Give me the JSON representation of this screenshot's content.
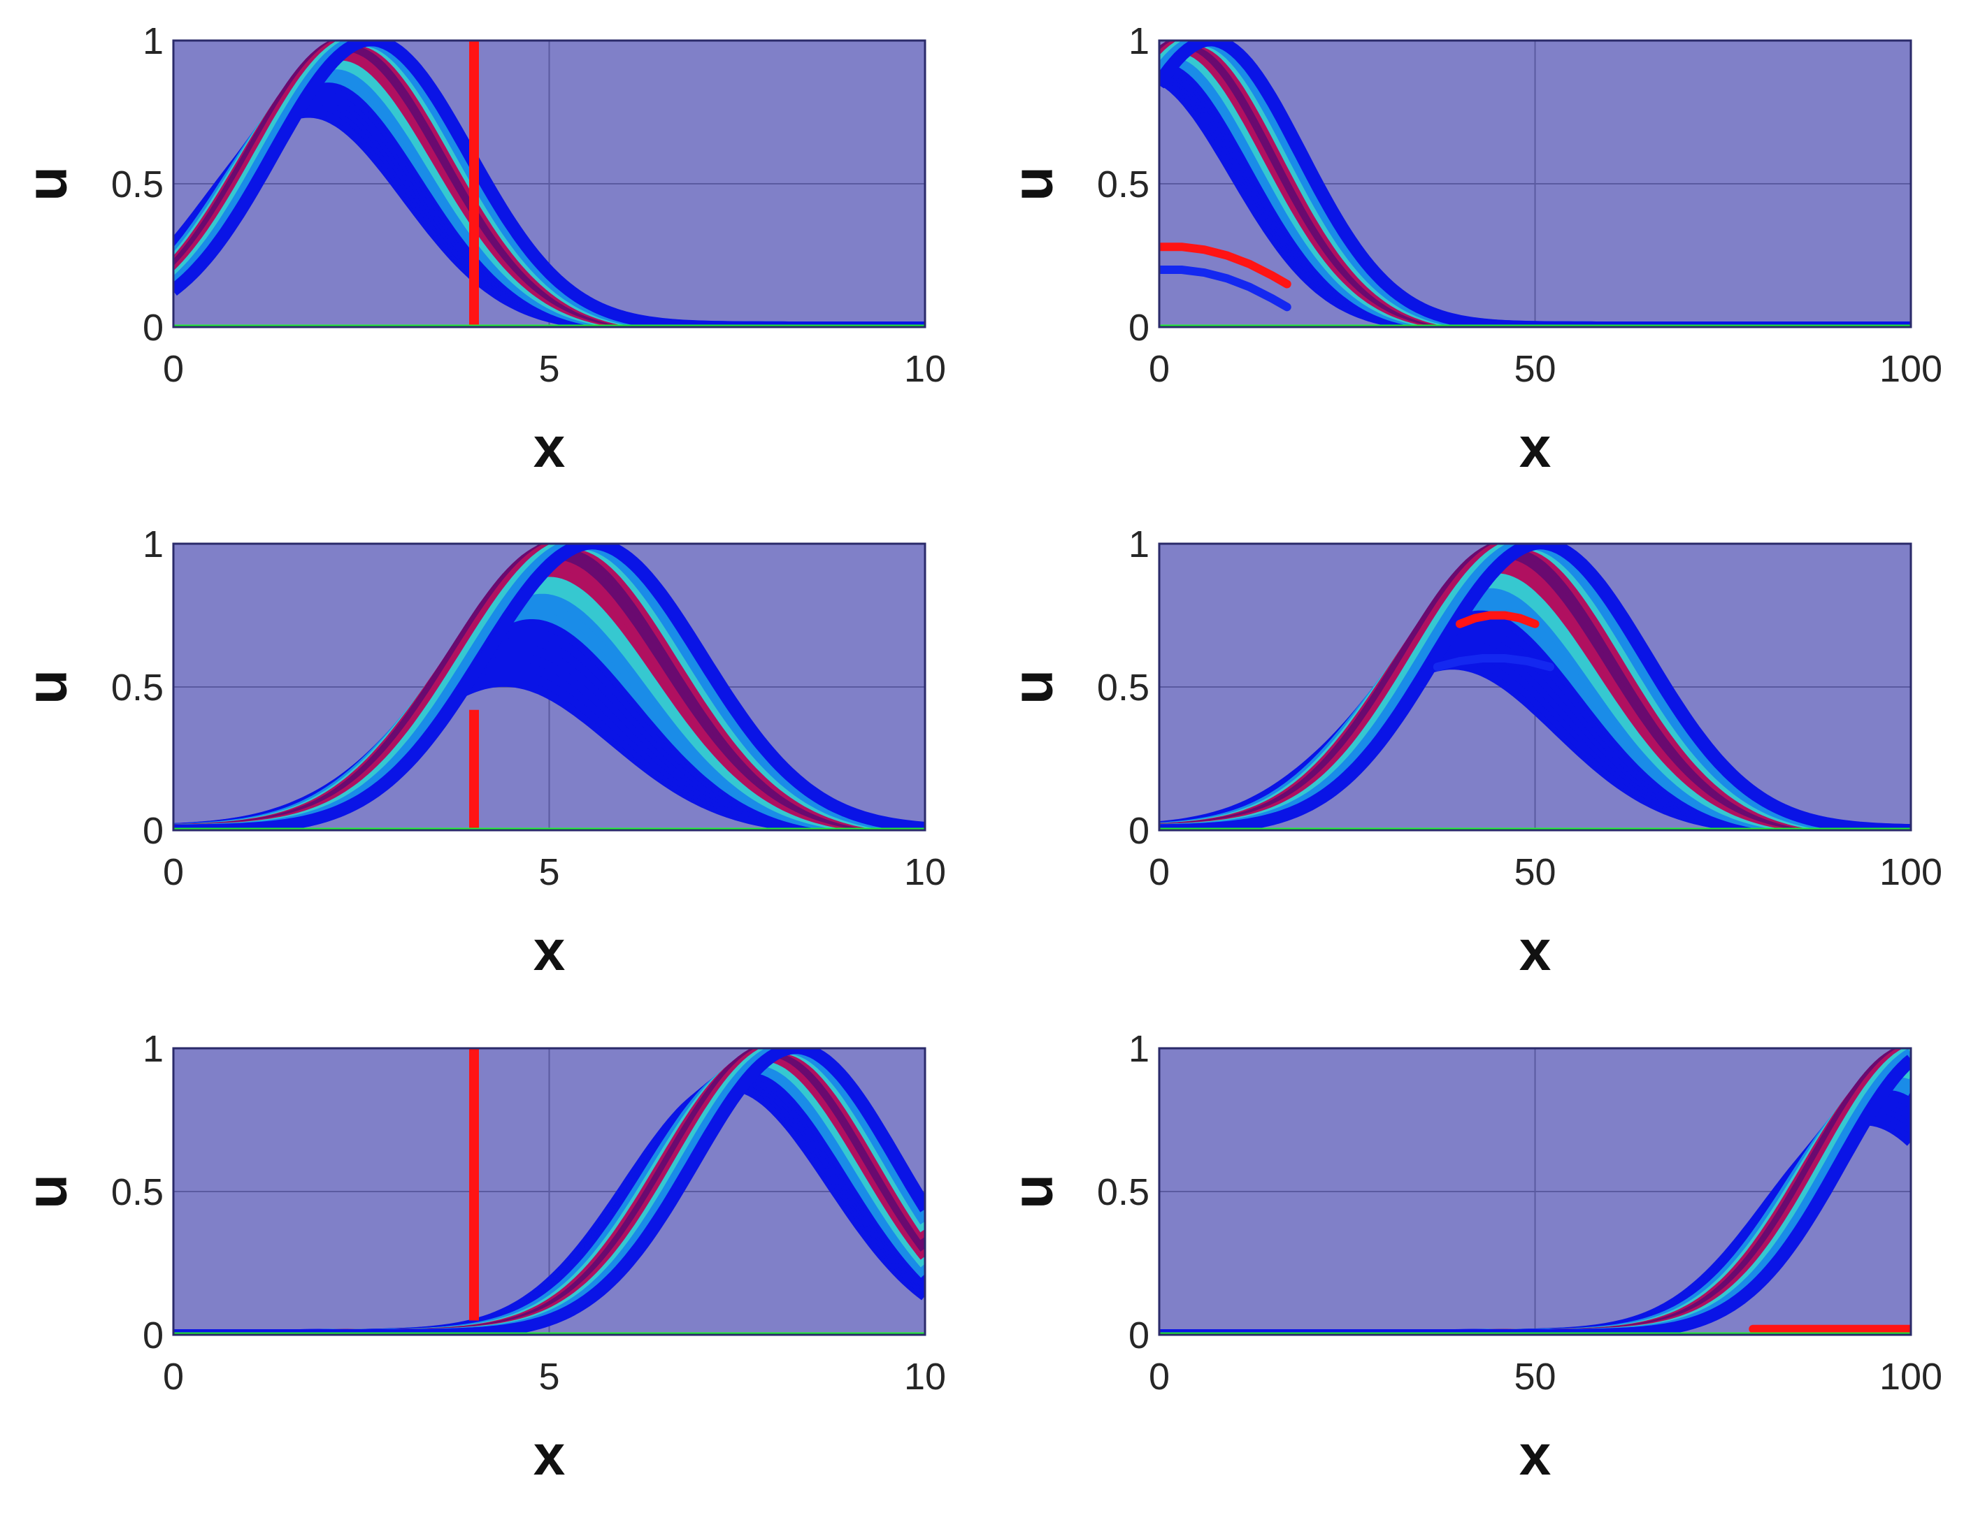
{
  "colors": {
    "background": "#8080c8",
    "frame": "#2a2a6a",
    "grid": "#5a5aa0",
    "band_outer": "#0a14e6",
    "band_mid": "#1a8ce8",
    "band_inner": "#36c8d0",
    "band_core": "#b01060",
    "band_center": "#6a0a70",
    "marker": "#ff1414",
    "secondary": "#1428f0",
    "boundary": "#22ee33"
  },
  "chart_data": [
    {
      "type": "line",
      "panel": "top-left",
      "xlabel": "x",
      "ylabel": "u",
      "xlim": [
        0,
        10
      ],
      "ylim": [
        0,
        1
      ],
      "xticks": [
        "0",
        "5",
        "10"
      ],
      "yticks": [
        "0",
        "0.5",
        "1"
      ],
      "grid": true,
      "band": {
        "peak_x": 2.2,
        "sigma": 1.3,
        "upper_offset": 0.45,
        "lower_offset": -0.4,
        "lower_peak": 0.75
      },
      "vertical_marker": {
        "x": 4.0,
        "y0": 0,
        "y1": 1
      },
      "arc_markers": []
    },
    {
      "type": "line",
      "panel": "top-right",
      "xlabel": "x",
      "ylabel": "u",
      "xlim": [
        0,
        100
      ],
      "ylim": [
        0,
        1
      ],
      "xticks": [
        "0",
        "50",
        "100"
      ],
      "yticks": [
        "0",
        "0.5",
        "1"
      ],
      "grid": true,
      "band": {
        "peak_x": 2,
        "sigma": 12,
        "upper_offset": 5,
        "lower_offset": -4,
        "lower_peak": 0.88
      },
      "vertical_marker": null,
      "arc_markers": [
        {
          "series": "red",
          "x": [
            0,
            3,
            6,
            9,
            12,
            15,
            17
          ],
          "y": [
            0.28,
            0.28,
            0.27,
            0.25,
            0.22,
            0.18,
            0.15
          ]
        },
        {
          "series": "blue",
          "x": [
            0,
            3,
            6,
            9,
            12,
            15,
            17
          ],
          "y": [
            0.2,
            0.2,
            0.19,
            0.17,
            0.14,
            0.1,
            0.07
          ]
        }
      ]
    },
    {
      "type": "line",
      "panel": "middle-left",
      "xlabel": "x",
      "ylabel": "u",
      "xlim": [
        0,
        10
      ],
      "ylim": [
        0,
        1
      ],
      "xticks": [
        "0",
        "5",
        "10"
      ],
      "yticks": [
        "0",
        "0.5",
        "1"
      ],
      "grid": true,
      "band": {
        "peak_x": 5,
        "sigma": 1.45,
        "upper_offset": 0.6,
        "lower_offset": -0.6,
        "lower_peak": 0.52
      },
      "vertical_marker": {
        "x": 4.0,
        "y0": 0,
        "y1": 0.42
      },
      "arc_markers": []
    },
    {
      "type": "line",
      "panel": "middle-right",
      "xlabel": "x",
      "ylabel": "u",
      "xlim": [
        0,
        100
      ],
      "ylim": [
        0,
        1
      ],
      "xticks": [
        "0",
        "50",
        "100"
      ],
      "yticks": [
        "0",
        "0.5",
        "1"
      ],
      "grid": true,
      "band": {
        "peak_x": 45,
        "sigma": 14,
        "upper_offset": 6,
        "lower_offset": -6,
        "lower_peak": 0.58
      },
      "vertical_marker": null,
      "arc_markers": [
        {
          "series": "red",
          "x": [
            40,
            42,
            44,
            46,
            48,
            50
          ],
          "y": [
            0.72,
            0.74,
            0.75,
            0.75,
            0.74,
            0.72
          ]
        },
        {
          "series": "blue",
          "x": [
            37,
            40,
            43,
            46,
            49,
            52
          ],
          "y": [
            0.57,
            0.59,
            0.6,
            0.6,
            0.59,
            0.57
          ]
        }
      ]
    },
    {
      "type": "line",
      "panel": "bottom-left",
      "xlabel": "x",
      "ylabel": "u",
      "xlim": [
        0,
        10
      ],
      "ylim": [
        0,
        1
      ],
      "xticks": [
        "0",
        "5",
        "10"
      ],
      "yticks": [
        "0",
        "0.5",
        "1"
      ],
      "grid": true,
      "band": {
        "peak_x": 7.8,
        "sigma": 1.35,
        "upper_offset": 0.5,
        "lower_offset": -0.4,
        "lower_peak": 0.87
      },
      "vertical_marker": {
        "x": 4.0,
        "y0": 0.05,
        "y1": 1
      },
      "arc_markers": []
    },
    {
      "type": "line",
      "panel": "bottom-right",
      "xlabel": "x",
      "ylabel": "u",
      "xlim": [
        0,
        100
      ],
      "ylim": [
        0,
        1
      ],
      "xticks": [
        "0",
        "50",
        "100"
      ],
      "yticks": [
        "0",
        "0.5",
        "1"
      ],
      "grid": true,
      "band": {
        "peak_x": 98,
        "sigma": 13,
        "upper_offset": 6,
        "lower_offset": -4,
        "lower_peak": 0.75
      },
      "vertical_marker": null,
      "arc_markers": [
        {
          "series": "red",
          "x": [
            79,
            85,
            90,
            95,
            100
          ],
          "y": [
            0.02,
            0.02,
            0.02,
            0.02,
            0.02
          ]
        }
      ]
    }
  ]
}
